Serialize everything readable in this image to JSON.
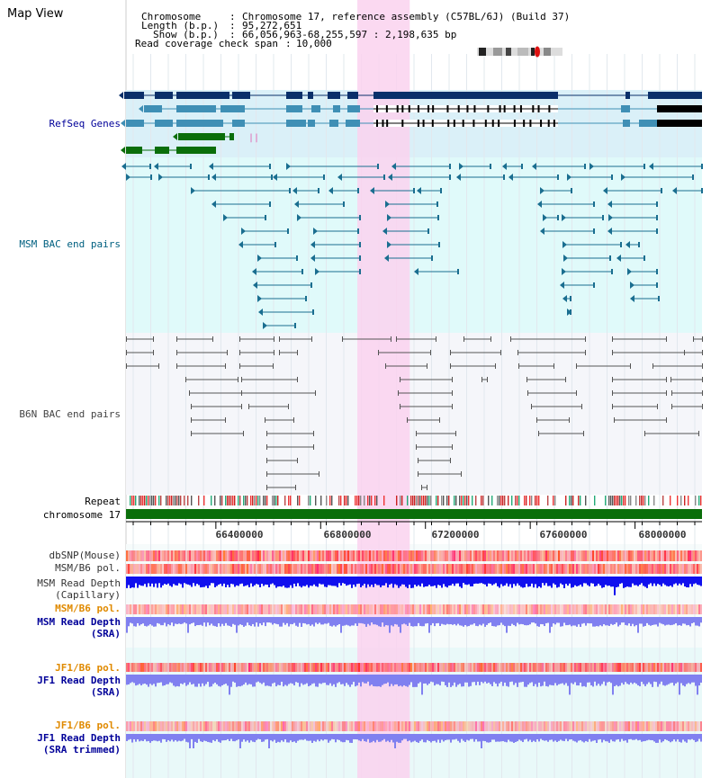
{
  "title": "Map View",
  "info": {
    "chromosome_key": "Chromosome",
    "chromosome_val": "Chromosome 17, reference assembly (C57BL/6J) (Build 37)",
    "length_key": "Length (b.p.)",
    "length_val": "95,272,651",
    "show_key": "Show (b.p.)",
    "show_val": "66,056,963-68,255,597 : 2,198,635 bp",
    "span_key": "Read coverage check span",
    "span_val": "10,000"
  },
  "tracks": {
    "refseq": "RefSeq Genes",
    "msm_bac": "MSM BAC end pairs",
    "b6n_bac": "B6N BAC end pairs",
    "repeat": "Repeat",
    "chromosome": "chromosome 17",
    "dbsnp": "dbSNP(Mouse)",
    "msm_b6_pol_1": "MSM/B6 pol.",
    "msm_depth_cap_1": "MSM Read Depth",
    "msm_depth_cap_2": "(Capillary)",
    "msm_b6_pol_2": "MSM/B6 pol.",
    "msm_depth_sra_1": "MSM Read Depth",
    "msm_depth_sra_2": "(SRA)",
    "jf1_b6_pol_1": "JF1/B6 pol.",
    "jf1_depth_sra_1": "JF1 Read Depth",
    "jf1_depth_sra_2": "(SRA)",
    "jf1_b6_pol_2": "JF1/B6 pol.",
    "jf1_depth_trim_1": "JF1 Read Depth",
    "jf1_depth_trim_2": "(SRA trimmed)"
  },
  "ruler": {
    "ticks": [
      "66400000",
      "66800000",
      "67200000",
      "67600000",
      "68000000"
    ],
    "tick_values": [
      66400000,
      66800000,
      67200000,
      67600000,
      68000000
    ],
    "view_start": 66056963,
    "view_end": 68255597
  },
  "highlight": {
    "start": 66940000,
    "end": 67140000
  },
  "colors": {
    "refseq_bg": "#daf0f8",
    "msm_bg": "#e0fafa",
    "b6n_bg": "#f5f6fa",
    "highlight": "#fad2ee",
    "gene_dark": "#0a2f6a",
    "gene_mid": "#3f8fb5",
    "gene_green": "#0a6e0a",
    "gene_black": "#000000",
    "msm_bac_line": "#1a6e90",
    "b6n_bac_line": "#555555",
    "chromosome_bar": "#0a6e0a",
    "pol_red": "#ff2a2a",
    "depth_blue": "#1010ee",
    "depth_light": "#8080f0",
    "label_blue": "#000099",
    "label_teal": "#006080",
    "label_orange": "#e08a00",
    "label_grey": "#333333"
  }
}
